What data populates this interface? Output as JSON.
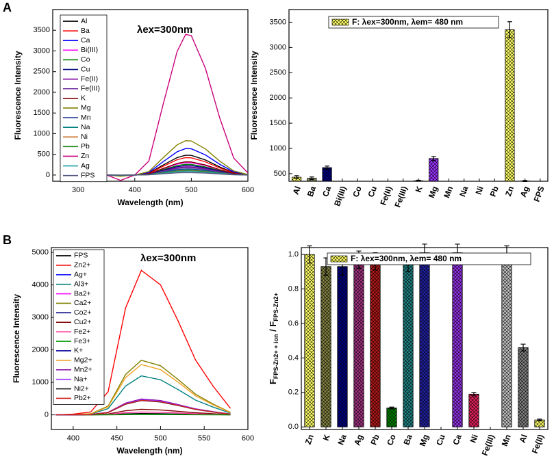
{
  "panel_labels": [
    "A",
    "B"
  ],
  "chart_data": [
    {
      "type": "line",
      "annotation": "λex=300nm",
      "x_label": "Wavelength (nm)",
      "y_label": "Fluorescence Intensity",
      "xlim": [
        255,
        600
      ],
      "xticks": [
        300,
        400,
        500,
        600
      ],
      "ylim": [
        -150,
        4000
      ],
      "yticks": [
        0,
        500,
        1000,
        1500,
        2000,
        2500,
        3000,
        3500
      ],
      "x": [
        350,
        375,
        400,
        425,
        450,
        475,
        490,
        500,
        525,
        550,
        575,
        600
      ],
      "series": [
        {
          "name": "Al",
          "color": "#000000",
          "values": [
            0,
            -20,
            0,
            48,
            240,
            422,
            480,
            475,
            365,
            197,
            58,
            7
          ]
        },
        {
          "name": "Ba",
          "color": "#ff0000",
          "values": [
            0,
            -20,
            0,
            42,
            210,
            370,
            420,
            416,
            319,
            172,
            50,
            6
          ]
        },
        {
          "name": "Ca",
          "color": "#0000ff",
          "values": [
            0,
            -25,
            0,
            64,
            320,
            563,
            640,
            634,
            486,
            262,
            77,
            10
          ]
        },
        {
          "name": "Bi(III)",
          "color": "#ff00ff",
          "values": [
            0,
            -12,
            0,
            30,
            150,
            264,
            300,
            297,
            228,
            123,
            36,
            5
          ]
        },
        {
          "name": "Co",
          "color": "#008000",
          "values": [
            0,
            -10,
            0,
            26,
            130,
            229,
            260,
            257,
            198,
            107,
            31,
            4
          ]
        },
        {
          "name": "Cu",
          "color": "#000080",
          "values": [
            0,
            -9,
            0,
            23,
            115,
            202,
            230,
            228,
            175,
            94,
            28,
            3
          ]
        },
        {
          "name": "Fe(II)",
          "color": "#8000a0",
          "values": [
            0,
            -8,
            0,
            20,
            100,
            176,
            200,
            198,
            152,
            82,
            24,
            3
          ]
        },
        {
          "name": "Fe(III)",
          "color": "#7030a0",
          "values": [
            0,
            -7,
            0,
            18,
            90,
            158,
            180,
            178,
            137,
            74,
            22,
            3
          ]
        },
        {
          "name": "K",
          "color": "#800000",
          "values": [
            0,
            -13,
            0,
            32,
            160,
            282,
            320,
            317,
            243,
            131,
            38,
            5
          ]
        },
        {
          "name": "Mg",
          "color": "#808000",
          "values": [
            0,
            -30,
            0,
            83,
            415,
            730,
            830,
            822,
            631,
            340,
            100,
            12
          ]
        },
        {
          "name": "Mn",
          "color": "#1f3a93",
          "values": [
            0,
            -6,
            0,
            15,
            75,
            132,
            150,
            149,
            114,
            62,
            18,
            2
          ]
        },
        {
          "name": "Na",
          "color": "#008080",
          "values": [
            0,
            -5,
            0,
            13,
            65,
            114,
            130,
            129,
            99,
            53,
            16,
            2
          ]
        },
        {
          "name": "Ni",
          "color": "#c86414",
          "values": [
            0,
            -4,
            0,
            11,
            55,
            97,
            110,
            109,
            84,
            45,
            13,
            2
          ]
        },
        {
          "name": "Pb",
          "color": "#1a8a1a",
          "values": [
            0,
            -4,
            0,
            10,
            50,
            88,
            100,
            99,
            76,
            41,
            12,
            2
          ]
        },
        {
          "name": "Zn",
          "color": "#c8007c",
          "values": [
            0,
            -130,
            0,
            340,
            1700,
            2990,
            3400,
            3370,
            2580,
            1390,
            410,
            50
          ]
        },
        {
          "name": "Ag",
          "color": "#20a0a0",
          "values": [
            0,
            -4,
            0,
            9,
            45,
            79,
            90,
            89,
            68,
            37,
            11,
            1
          ]
        },
        {
          "name": "FPS",
          "color": "#505080",
          "values": [
            0,
            -2,
            0,
            6,
            30,
            53,
            60,
            59,
            46,
            25,
            7,
            1
          ]
        }
      ]
    },
    {
      "type": "bar",
      "legend_label": "F:  λex=300nm,  λem= 480 nm",
      "y_label": "Fluorescence Intensity",
      "color": "#ffff66",
      "ylim": [
        350,
        3750
      ],
      "yticks": [
        500,
        1000,
        1500,
        2000,
        2500,
        3000,
        3500
      ],
      "categories": [
        "Al",
        "Ba",
        "Ca",
        "Bi(III)",
        "Co",
        "Cu",
        "Fe(II)",
        "Fe(III)",
        "K",
        "Mg",
        "Mn",
        "Na",
        "Ni",
        "Pb",
        "Zn",
        "Ag",
        "FPS"
      ],
      "colors": [
        "#ffff66",
        "#999966",
        "#000080",
        null,
        null,
        null,
        null,
        null,
        "#800000",
        "#9933ff",
        null,
        null,
        null,
        null,
        "#ffff66",
        "#999999",
        null
      ],
      "values": [
        430,
        410,
        620,
        null,
        null,
        null,
        null,
        null,
        360,
        800,
        null,
        null,
        null,
        null,
        3350,
        355,
        null
      ],
      "errors": [
        30,
        25,
        30,
        null,
        null,
        null,
        null,
        null,
        10,
        40,
        null,
        null,
        null,
        null,
        160,
        10,
        null
      ]
    },
    {
      "type": "line",
      "annotation": "λex=300nm",
      "x_label": "Wavelength (nm)",
      "y_label": "Fluorescence Intensity",
      "xlim": [
        375,
        600
      ],
      "xticks": [
        400,
        450,
        500,
        550,
        600
      ],
      "ylim": [
        -450,
        5150
      ],
      "yticks": [
        0,
        1000,
        2000,
        3000,
        4000,
        5000
      ],
      "x": [
        380,
        400,
        420,
        440,
        460,
        478,
        500,
        520,
        540,
        560,
        580
      ],
      "series": [
        {
          "name": "FPS",
          "color": "#000000",
          "values": [
            0,
            0,
            1,
            6,
            30,
            40,
            36,
            26,
            15,
            8,
            2
          ]
        },
        {
          "name": "Zn2+",
          "color": "#ff0000",
          "values": [
            0,
            22,
            89,
            712,
            3293,
            4450,
            4005,
            2893,
            1691,
            890,
            200
          ]
        },
        {
          "name": "Ag+",
          "color": "#0000ff",
          "values": [
            0,
            2,
            9,
            74,
            340,
            460,
            414,
            299,
            175,
            92,
            21
          ]
        },
        {
          "name": "Al3+",
          "color": "#008080",
          "values": [
            0,
            6,
            24,
            192,
            888,
            1200,
            1080,
            780,
            456,
            240,
            54
          ]
        },
        {
          "name": "Ba2+",
          "color": "#ff00ff",
          "values": [
            0,
            2,
            9,
            75,
            348,
            470,
            423,
            306,
            179,
            94,
            21
          ]
        },
        {
          "name": "Ca2+",
          "color": "#808000",
          "values": [
            0,
            8,
            34,
            269,
            1243,
            1680,
            1512,
            1092,
            638,
            336,
            76
          ]
        },
        {
          "name": "Co2+",
          "color": "#000080",
          "values": [
            0,
            2,
            10,
            77,
            355,
            480,
            432,
            312,
            182,
            96,
            22
          ]
        },
        {
          "name": "Cu2+",
          "color": "#800000",
          "values": [
            0,
            1,
            3,
            27,
            126,
            170,
            153,
            111,
            65,
            34,
            8
          ]
        },
        {
          "name": "Fe2+",
          "color": "#ff3399",
          "values": [
            0,
            0,
            2,
            14,
            67,
            90,
            81,
            59,
            34,
            18,
            4
          ]
        },
        {
          "name": "Fe3+",
          "color": "#009900",
          "values": [
            0,
            0,
            0,
            2,
            7,
            10,
            9,
            7,
            4,
            2,
            0
          ]
        },
        {
          "name": "K+",
          "color": "#000099",
          "values": [
            0,
            2,
            9,
            72,
            333,
            450,
            405,
            293,
            171,
            90,
            20
          ]
        },
        {
          "name": "Mg2+",
          "color": "#f0a020",
          "values": [
            0,
            8,
            31,
            248,
            1147,
            1550,
            1395,
            1008,
            589,
            310,
            70
          ]
        },
        {
          "name": "Mn2+",
          "color": "#8000a0",
          "values": [
            0,
            2,
            10,
            78,
            363,
            490,
            441,
            319,
            186,
            98,
            22
          ]
        },
        {
          "name": "Na+",
          "color": "#9933ff",
          "values": [
            0,
            2,
            9,
            75,
            348,
            470,
            423,
            306,
            179,
            94,
            21
          ]
        },
        {
          "name": "Ni2+",
          "color": "#111111",
          "values": [
            0,
            2,
            9,
            70,
            326,
            440,
            396,
            286,
            167,
            88,
            20
          ]
        },
        {
          "name": "Pb2+",
          "color": "#d02020",
          "values": [
            0,
            2,
            9,
            72,
            333,
            450,
            405,
            293,
            171,
            90,
            20
          ]
        }
      ]
    },
    {
      "type": "bar",
      "legend_label": "F:  λex=300nm,  λem= 480 nm",
      "y_label": [
        "F",
        "FPS-Zn2+ + ion",
        " / F",
        "FPS-Zn2+"
      ],
      "color": "#ffff66",
      "ylim": [
        -0.015,
        1.04
      ],
      "yticks": [
        {
          "value": 0,
          "label": "0.0"
        },
        0.2,
        0.4,
        0.6,
        0.8,
        {
          "value": 1,
          "label": "1.0"
        }
      ],
      "categories": [
        "Zn",
        "K",
        "Na",
        "Ag",
        "Pb",
        "Co",
        "Ba",
        "Mg",
        "Cu",
        "Ca",
        "Ni",
        "Fe(III)",
        "Mn",
        "Al",
        "Fe(II)"
      ],
      "colors": [
        "#ffff66",
        "#808040",
        "#000080",
        "#a0307f",
        "#b01818",
        "#008000",
        "#208080",
        "#2020a0",
        null,
        "#9030e0",
        "#e0205a",
        null,
        "#c0c0c0",
        "#808080",
        "#ffff66"
      ],
      "values": [
        1.0,
        0.93,
        0.93,
        0.97,
        0.96,
        0.11,
        0.95,
        1.01,
        null,
        1.01,
        0.19,
        null,
        1.0,
        0.46,
        0.04
      ],
      "errors": [
        0.05,
        0.05,
        0.05,
        0.05,
        0.05,
        0.005,
        0.05,
        0.05,
        null,
        0.05,
        0.01,
        null,
        0.05,
        0.02,
        0.005
      ]
    }
  ]
}
